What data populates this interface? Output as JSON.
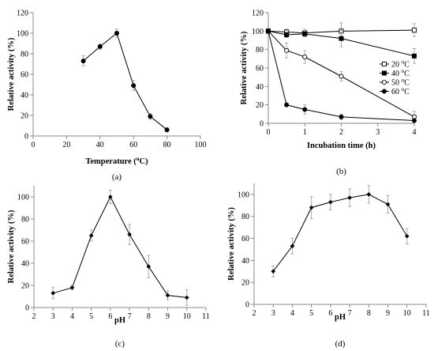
{
  "chart_data": [
    {
      "panel": "(a)",
      "type": "line",
      "xlabel": "Temperature (",
      "xlabel_sup": "o",
      "xlabel_suffix": "C)",
      "ylabel": "Relative activity (%)",
      "xlim": [
        0,
        100
      ],
      "ylim": [
        0,
        120
      ],
      "xticks": [
        0,
        20,
        40,
        60,
        80,
        100
      ],
      "yticks": [
        0,
        20,
        40,
        60,
        80,
        100,
        120
      ],
      "series": [
        {
          "marker": "filled-circle",
          "x": [
            30,
            40,
            50,
            60,
            70,
            80
          ],
          "y": [
            73,
            87,
            100,
            49,
            19,
            6
          ],
          "err": [
            5,
            3,
            4,
            5,
            3,
            2
          ]
        }
      ]
    },
    {
      "panel": "(b)",
      "type": "line",
      "xlabel": "Incubation time (h)",
      "ylabel": "Relative activity (%)",
      "xlim": [
        0,
        4
      ],
      "ylim": [
        0,
        120
      ],
      "xticks": [
        0,
        1,
        2,
        3,
        4
      ],
      "yticks": [
        0,
        20,
        40,
        60,
        80,
        100,
        120
      ],
      "legend_position": "middle-right",
      "series": [
        {
          "name": "20 ",
          "name_sup": "o",
          "name_suffix": "C",
          "marker": "open-square",
          "x": [
            0,
            0.5,
            1,
            2,
            4
          ],
          "y": [
            100,
            99,
            98,
            100,
            101
          ],
          "err": [
            0,
            3,
            4,
            9,
            7
          ]
        },
        {
          "name": "40 ",
          "name_sup": "o",
          "name_suffix": "C",
          "marker": "filled-square",
          "x": [
            0,
            0.5,
            1,
            2,
            4
          ],
          "y": [
            100,
            96,
            97,
            92,
            73
          ],
          "err": [
            0,
            3,
            3,
            9,
            8
          ]
        },
        {
          "name": "50 ",
          "name_sup": "o",
          "name_suffix": "C",
          "marker": "open-circle",
          "x": [
            0,
            0.5,
            1,
            2,
            4
          ],
          "y": [
            100,
            79,
            72,
            51,
            7
          ],
          "err": [
            0,
            8,
            7,
            5,
            6
          ]
        },
        {
          "name": "60 ",
          "name_sup": "o",
          "name_suffix": "C",
          "marker": "filled-circle",
          "x": [
            0,
            0.5,
            1,
            2,
            4
          ],
          "y": [
            100,
            20,
            15,
            7,
            3
          ],
          "err": [
            0,
            2,
            5,
            3,
            2
          ]
        }
      ]
    },
    {
      "panel": "(c)",
      "type": "line",
      "xlabel": "pH",
      "ylabel": "Relative activity (%)",
      "xlim": [
        2,
        11
      ],
      "ylim": [
        0,
        110
      ],
      "xticks": [
        2,
        3,
        4,
        5,
        6,
        7,
        8,
        9,
        10,
        11
      ],
      "yticks": [
        0,
        20,
        40,
        60,
        80,
        100
      ],
      "series": [
        {
          "marker": "filled-diamond",
          "x": [
            3,
            4,
            5,
            6,
            7,
            8,
            9,
            10
          ],
          "y": [
            13,
            18,
            65,
            100,
            66,
            37,
            11,
            9
          ],
          "err": [
            5,
            2,
            5,
            6,
            9,
            10,
            4,
            7
          ]
        }
      ]
    },
    {
      "panel": "(d)",
      "type": "line",
      "xlabel": "pH",
      "ylabel": "Relative activity (%)",
      "xlim": [
        2,
        11
      ],
      "ylim": [
        0,
        110
      ],
      "xticks": [
        2,
        3,
        4,
        5,
        6,
        7,
        8,
        9,
        10,
        11
      ],
      "yticks": [
        0,
        20,
        40,
        60,
        80,
        100
      ],
      "series": [
        {
          "marker": "filled-diamond",
          "x": [
            3,
            4,
            5,
            6,
            7,
            8,
            9,
            10
          ],
          "y": [
            30,
            53,
            88,
            93,
            97,
            100,
            91,
            62
          ],
          "err": [
            5,
            7,
            10,
            7,
            8,
            8,
            8,
            7
          ]
        }
      ]
    }
  ]
}
